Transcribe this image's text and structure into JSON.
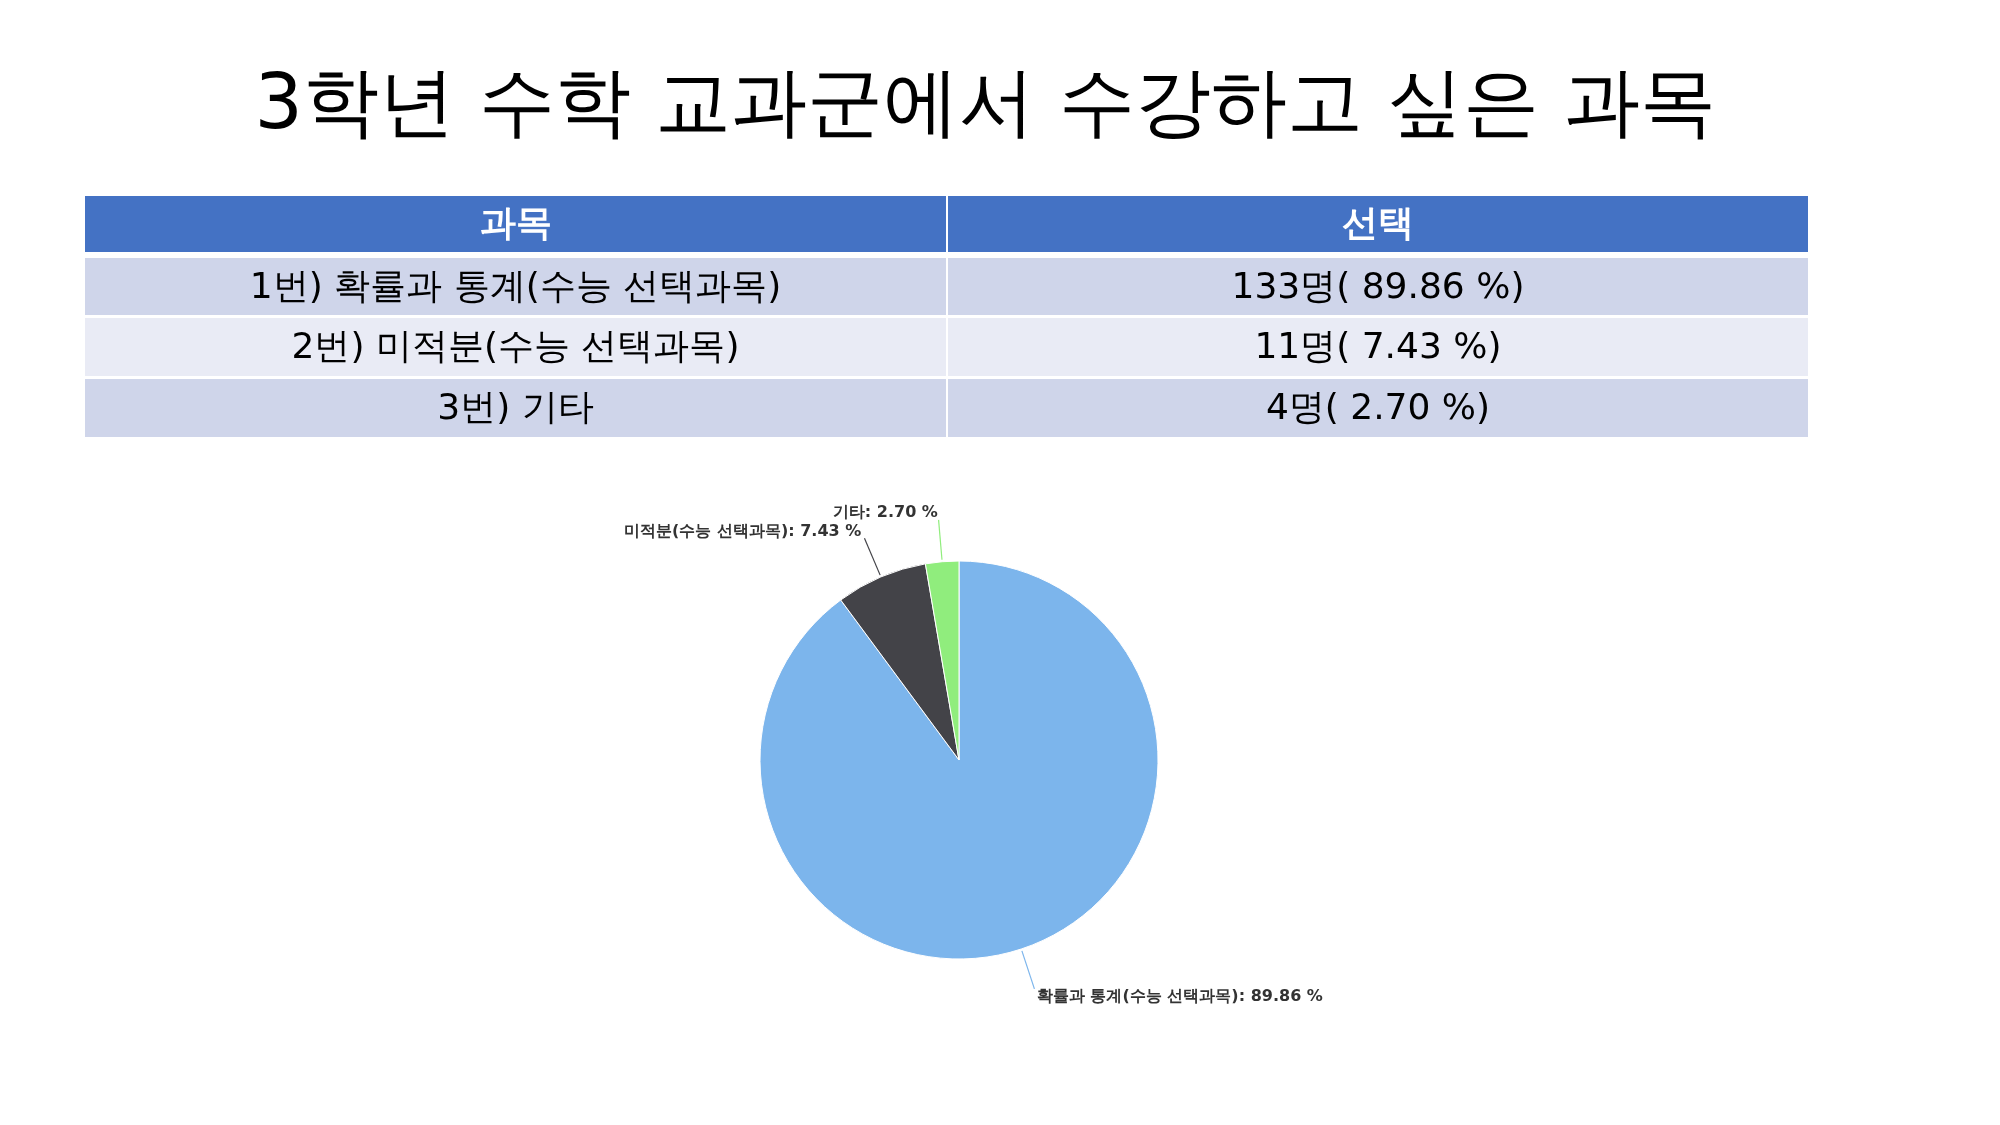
{
  "chart_data": {
    "type": "pie",
    "title": "3학년 수학 교과군에서 수강하고 싶은 과목",
    "categories": [
      "확률과 통계(수능 선택과목)",
      "미적분(수능 선택과목)",
      "기타"
    ],
    "values": [
      89.86,
      7.43,
      2.7
    ],
    "colors": [
      "#7cb5ec",
      "#434348",
      "#90ed7d"
    ],
    "value_labels": [
      "89.86 %",
      "7.43 %",
      "2.70 %"
    ],
    "annotations": [
      "과목",
      "선택",
      "1번) 확률과 통계(수능 선택과목)",
      "133명( 89.86 %)",
      "2번) 미적분(수능 선택과목)",
      "11명( 7.43 %)",
      "3번) 기타",
      "4명( 2.70 %)"
    ]
  }
}
